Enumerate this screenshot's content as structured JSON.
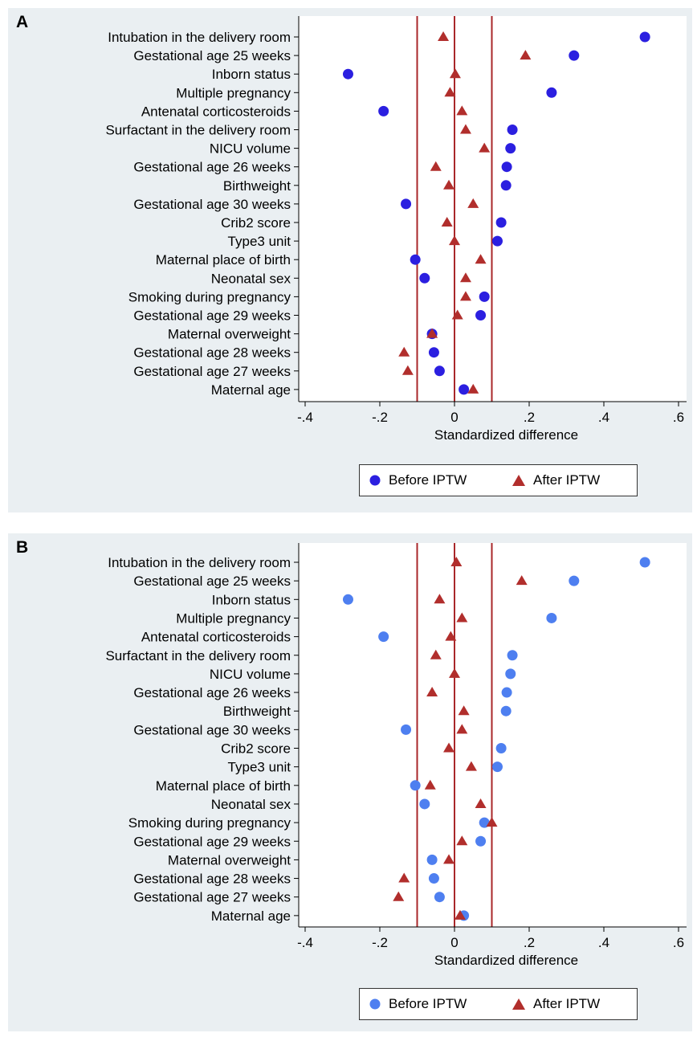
{
  "colors": {
    "before_a": "#2b1fe0",
    "before_b": "#4e7ff0",
    "after": "#b12e2c",
    "refline": "#a9272a",
    "panel_bg": "#eaeff2"
  },
  "panels": [
    {
      "label": "A",
      "xlabel": "Standardized difference",
      "legend": {
        "before": "Before IPTW",
        "after": "After IPTW"
      }
    },
    {
      "label": "B",
      "xlabel": "Standardized difference",
      "legend": {
        "before": "Before IPTW",
        "after": "After IPTW"
      }
    }
  ],
  "chart_data": [
    {
      "type": "scatter",
      "title": "A",
      "xlabel": "Standardized difference",
      "ylabel": "",
      "xlim": [
        -0.4,
        0.6
      ],
      "xticks": [
        -0.4,
        -0.2,
        0,
        0.2,
        0.4,
        0.6
      ],
      "xtick_labels": [
        "-.4",
        "-.2",
        "0",
        ".2",
        ".4",
        ".6"
      ],
      "reference_lines": [
        -0.1,
        0,
        0.1
      ],
      "categories": [
        "Intubation in the delivery room",
        "Gestational age 25 weeks",
        "Inborn status",
        "Multiple pregnancy",
        "Antenatal corticosteroids",
        "Surfactant in the delivery room",
        "NICU volume",
        "Gestational age 26 weeks",
        "Birthweight",
        "Gestational age 30 weeks",
        "Crib2 score",
        "Type3 unit",
        "Maternal place of birth",
        "Neonatal sex",
        "Smoking during pregnancy",
        "Gestational age 29 weeks",
        "Maternal overweight",
        "Gestational age 28 weeks",
        "Gestational age 27 weeks",
        "Maternal age"
      ],
      "series": [
        {
          "name": "Before IPTW",
          "marker": "circle",
          "values": [
            0.51,
            0.32,
            -0.285,
            0.26,
            -0.19,
            0.155,
            0.15,
            0.14,
            0.138,
            -0.13,
            0.125,
            0.115,
            -0.105,
            -0.08,
            0.08,
            0.07,
            -0.06,
            -0.055,
            -0.04,
            0.025
          ]
        },
        {
          "name": "After IPTW",
          "marker": "triangle",
          "values": [
            -0.03,
            0.19,
            0.002,
            -0.012,
            0.02,
            0.03,
            0.08,
            -0.05,
            -0.015,
            0.05,
            -0.02,
            0,
            0.07,
            0.03,
            0.03,
            0.008,
            -0.06,
            -0.135,
            -0.125,
            0.05
          ]
        }
      ]
    },
    {
      "type": "scatter",
      "title": "B",
      "xlabel": "Standardized difference",
      "ylabel": "",
      "xlim": [
        -0.4,
        0.6
      ],
      "xticks": [
        -0.4,
        -0.2,
        0,
        0.2,
        0.4,
        0.6
      ],
      "xtick_labels": [
        "-.4",
        "-.2",
        "0",
        ".2",
        ".4",
        ".6"
      ],
      "reference_lines": [
        -0.1,
        0,
        0.1
      ],
      "categories": [
        "Intubation in the delivery room",
        "Gestational age 25 weeks",
        "Inborn status",
        "Multiple pregnancy",
        "Antenatal corticosteroids",
        "Surfactant in the delivery room",
        "NICU volume",
        "Gestational age 26 weeks",
        "Birthweight",
        "Gestational age 30 weeks",
        "Crib2 score",
        "Type3 unit",
        "Maternal place of birth",
        "Neonatal sex",
        "Smoking during pregnancy",
        "Gestational age 29 weeks",
        "Maternal overweight",
        "Gestational age 28 weeks",
        "Gestational age 27 weeks",
        "Maternal age"
      ],
      "series": [
        {
          "name": "Before IPTW",
          "marker": "circle",
          "values": [
            0.51,
            0.32,
            -0.285,
            0.26,
            -0.19,
            0.155,
            0.15,
            0.14,
            0.138,
            -0.13,
            0.125,
            0.115,
            -0.105,
            -0.08,
            0.08,
            0.07,
            -0.06,
            -0.055,
            -0.04,
            0.025
          ]
        },
        {
          "name": "After IPTW",
          "marker": "triangle",
          "values": [
            0.005,
            0.18,
            -0.04,
            0.02,
            -0.01,
            -0.05,
            0,
            -0.06,
            0.025,
            0.02,
            -0.015,
            0.045,
            -0.065,
            0.07,
            0.1,
            0.02,
            -0.015,
            -0.135,
            -0.15,
            0.015
          ]
        }
      ]
    }
  ]
}
